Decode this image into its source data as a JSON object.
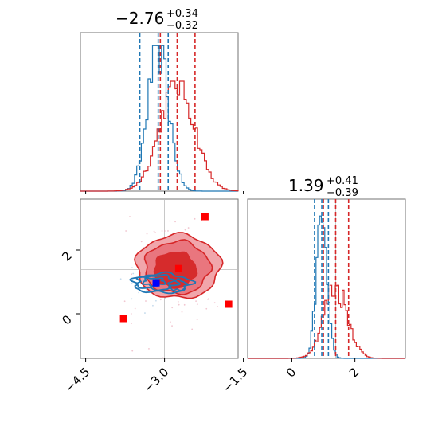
{
  "chart_data": {
    "type": "corner",
    "colors": {
      "series_a": "#1f77b4",
      "series_b": "#d62728",
      "marker_blue": "#0000ff",
      "marker_red": "#ff0000",
      "grid": "#bbbbbb"
    },
    "params": [
      {
        "title_value": "−2.76",
        "title_plus": "+0.34",
        "title_minus": "−0.32",
        "range": [
          -4.6,
          -1.6
        ],
        "ticks": [
          -4.5,
          -3.0,
          -1.5
        ],
        "tick_labels": [
          "−4.5",
          "−3.0",
          "−1.5"
        ],
        "quantiles_series_a": [
          -3.47,
          -3.12,
          -2.93
        ],
        "quantiles_series_b": [
          -3.08,
          -2.76,
          -2.42
        ]
      },
      {
        "title_value": "1.39",
        "title_plus": "+0.41",
        "title_minus": "−0.39",
        "range": [
          -1.4,
          3.6
        ],
        "ticks": [
          0,
          2
        ],
        "tick_labels": [
          "0",
          "2"
        ],
        "quantiles_series_a": [
          0.72,
          0.95,
          1.16
        ],
        "quantiles_series_b": [
          1.0,
          1.39,
          1.8
        ]
      }
    ],
    "joint": {
      "y_range": [
        -1.4,
        3.6
      ],
      "y_ticks": [
        0,
        2
      ],
      "y_tick_labels": [
        "0",
        "2"
      ],
      "grid": true,
      "markers_blue": [
        [
          -3.16,
          0.97
        ]
      ],
      "markers_red": [
        [
          -3.78,
          -0.15
        ],
        [
          -2.23,
          3.05
        ],
        [
          -1.78,
          0.3
        ],
        [
          -2.73,
          1.42
        ]
      ]
    },
    "grid_lines": {
      "x1": [
        -3.0
      ],
      "y2": [
        1.39
      ],
      "x2": [
        1.39
      ]
    }
  }
}
